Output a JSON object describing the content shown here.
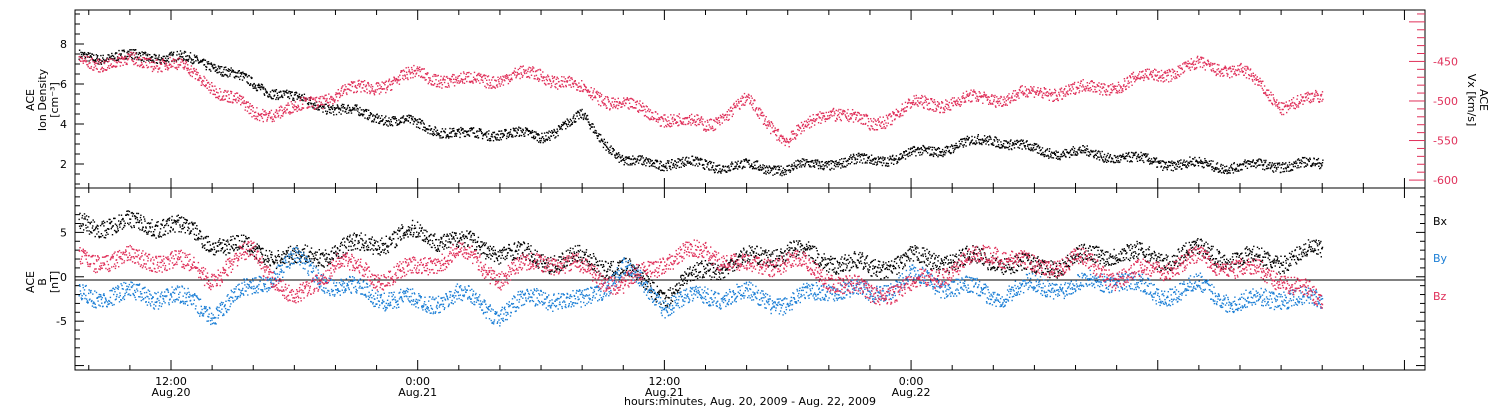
{
  "chart_data": [
    {
      "type": "scatter",
      "panel": "top",
      "ylabel_left": [
        "ACE",
        "Ion Density",
        "[cm⁻³]"
      ],
      "ylabel_right": [
        "ACE",
        "Vx [km/s]"
      ],
      "y_left_ticks": [
        "2",
        "4",
        "6",
        "8"
      ],
      "y_left_range": [
        0.8,
        9.7
      ],
      "y_right_ticks": [
        "-450",
        "-500",
        "-550",
        "-600"
      ],
      "y_right_range": [
        -610,
        -385
      ],
      "series": [
        {
          "axis": "left",
          "color": "#000000",
          "x_hours": [
            0,
            2,
            4,
            6,
            8,
            10,
            12,
            14,
            16,
            18,
            20,
            22,
            24,
            26,
            28,
            30,
            32,
            34,
            36,
            38,
            40,
            42,
            44,
            46,
            48,
            50,
            52,
            54,
            56
          ],
          "values": [
            7.4,
            7.0,
            6.0,
            5.3,
            4.8,
            4.4,
            4.0,
            3.5,
            3.6,
            3.4,
            4.4,
            2.1,
            2.1,
            2.0,
            1.9,
            1.8,
            2.1,
            2.2,
            2.5,
            2.9,
            3.3,
            2.7,
            2.6,
            2.4,
            2.1,
            2.0,
            1.9,
            2.0,
            2.0
          ]
        },
        {
          "axis": "right",
          "color": "#e0305a",
          "x_hours": [
            0,
            2,
            4,
            6,
            8,
            10,
            12,
            14,
            16,
            18,
            20,
            22,
            24,
            26,
            28,
            30,
            32,
            34,
            36,
            38,
            40,
            42,
            44,
            46,
            48,
            50,
            52,
            54,
            56
          ],
          "values": [
            -450,
            -480,
            -515,
            -510,
            -490,
            -480,
            -465,
            -475,
            -470,
            -465,
            -485,
            -505,
            -520,
            -530,
            -500,
            -550,
            -510,
            -530,
            -505,
            -500,
            -495,
            -490,
            -485,
            -480,
            -465,
            -455,
            -460,
            -505,
            -495
          ]
        }
      ]
    },
    {
      "type": "scatter",
      "panel": "bottom",
      "ylabel": [
        "ACE",
        "B",
        "[nT]"
      ],
      "y_ticks": [
        "5",
        "0",
        "-5"
      ],
      "y_range": [
        -10.5,
        10
      ],
      "legend": [
        {
          "label": "Bx",
          "color": "#000000"
        },
        {
          "label": "By",
          "color": "#1c7fd6"
        },
        {
          "label": "Bz",
          "color": "#e0305a"
        }
      ],
      "series": [
        {
          "name": "Bx",
          "color": "#000000",
          "x_hours": [
            0,
            2,
            4,
            6,
            8,
            10,
            12,
            14,
            16,
            18,
            20,
            22,
            24,
            26,
            28,
            30,
            32,
            34,
            36,
            38,
            40,
            42,
            44,
            46,
            48,
            50,
            52,
            54,
            56
          ],
          "values": [
            6,
            4,
            3,
            2,
            3,
            4,
            5,
            4,
            3,
            2,
            2,
            1,
            -2,
            1,
            2,
            3,
            2,
            1,
            2,
            2,
            2,
            1,
            2,
            3,
            2,
            3,
            2,
            2,
            3
          ]
        },
        {
          "name": "By",
          "color": "#1c7fd6",
          "x_hours": [
            0,
            2,
            4,
            6,
            8,
            10,
            12,
            14,
            16,
            18,
            20,
            22,
            24,
            26,
            28,
            30,
            32,
            34,
            36,
            38,
            40,
            42,
            44,
            46,
            48,
            50,
            52,
            54,
            56
          ],
          "values": [
            -2,
            -4,
            -1,
            2,
            -1,
            -2,
            -3,
            -2,
            -4,
            -2,
            -3,
            1,
            -3,
            -2,
            -2,
            -3,
            -1,
            -2,
            0,
            -1,
            -2,
            -1,
            -1,
            0,
            -2,
            -1,
            -3,
            -2,
            -3
          ]
        },
        {
          "name": "Bz",
          "color": "#e0305a",
          "x_hours": [
            0,
            2,
            4,
            6,
            8,
            10,
            12,
            14,
            16,
            18,
            20,
            22,
            24,
            26,
            28,
            30,
            32,
            34,
            36,
            38,
            40,
            42,
            44,
            46,
            48,
            50,
            52,
            54,
            56
          ],
          "values": [
            2,
            0,
            3,
            -3,
            2,
            0,
            1,
            3,
            0,
            2,
            1,
            -1,
            2,
            3,
            1,
            2,
            0,
            -2,
            -1,
            1,
            3,
            1,
            2,
            0,
            1,
            2,
            1,
            0,
            -3
          ]
        }
      ]
    }
  ],
  "x_axis": {
    "range_hours": [
      -4.67,
      61.0
    ],
    "major_ticks": [
      {
        "hour": 0,
        "time": "12:00",
        "date": "Aug.20"
      },
      {
        "hour": 12,
        "time": "0:00",
        "date": "Aug.21"
      },
      {
        "hour": 24,
        "time": "12:00",
        "date": "Aug.21"
      },
      {
        "hour": 36,
        "time": "0:00",
        "date": "Aug.22"
      }
    ],
    "label": "hours:minutes, Aug. 20, 2009 - Aug. 22, 2009"
  }
}
